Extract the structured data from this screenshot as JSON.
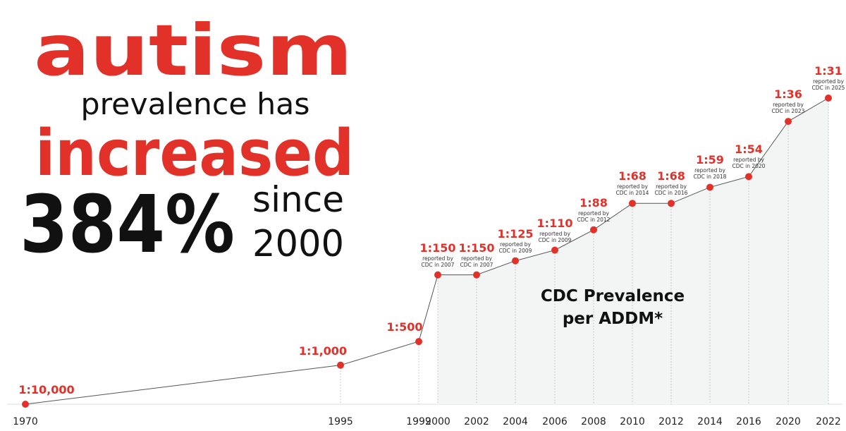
{
  "chart_data": {
    "type": "line",
    "title_lines": [
      "autism",
      "prevalence has",
      "increased"
    ],
    "stat": "384%",
    "stat_note": [
      "since",
      "2000"
    ],
    "annotation": "CDC Prevalence per ADDM*",
    "categories": [
      "1970",
      "1995",
      "1999",
      "2000",
      "2002",
      "2004",
      "2006",
      "2008",
      "2010",
      "2012",
      "2014",
      "2016",
      "2020",
      "2022"
    ],
    "values": [
      10000,
      1000,
      500,
      150,
      150,
      125,
      110,
      88,
      68,
      68,
      59,
      54,
      36,
      31
    ],
    "value_labels": [
      "1:10,000",
      "1:1,000",
      "1:500",
      "1:150",
      "1:150",
      "1:125",
      "1:110",
      "1:88",
      "1:68",
      "1:68",
      "1:59",
      "1:54",
      "1:36",
      "1:31"
    ],
    "notes": [
      null,
      null,
      null,
      "reported by CDC in 2007",
      "reported by CDC in 2007",
      "reported by CDC in 2009",
      "reported by CDC in 2009",
      "reported by CDC in 2012",
      "reported by CDC in 2014",
      "reported by CDC in 2016",
      "reported by CDC in 2018",
      "reported by CDC in 2020",
      "reported by CDC in 2023",
      "reported by CDC in 2025"
    ],
    "color": "#e23129",
    "line_color": "#555555"
  }
}
